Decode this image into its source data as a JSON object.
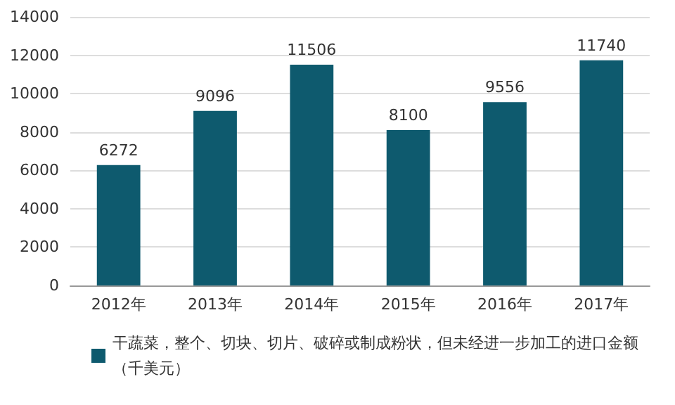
{
  "chart_data": {
    "type": "bar",
    "categories": [
      "2012年",
      "2013年",
      "2014年",
      "2015年",
      "2016年",
      "2017年"
    ],
    "series": [
      {
        "name": "干蔬菜，整个、切块、切片、破碎或制成粉状，但未经进一步加工的进口金额（千美元）",
        "color": "#0e5a6e",
        "values": [
          6272,
          9096,
          11506,
          8100,
          9556,
          11740
        ]
      }
    ],
    "ylim": [
      0,
      14000
    ],
    "yticks": [
      0,
      2000,
      4000,
      6000,
      8000,
      10000,
      12000,
      14000
    ],
    "grid": "y",
    "legend": "bottom",
    "data_labels": true
  }
}
